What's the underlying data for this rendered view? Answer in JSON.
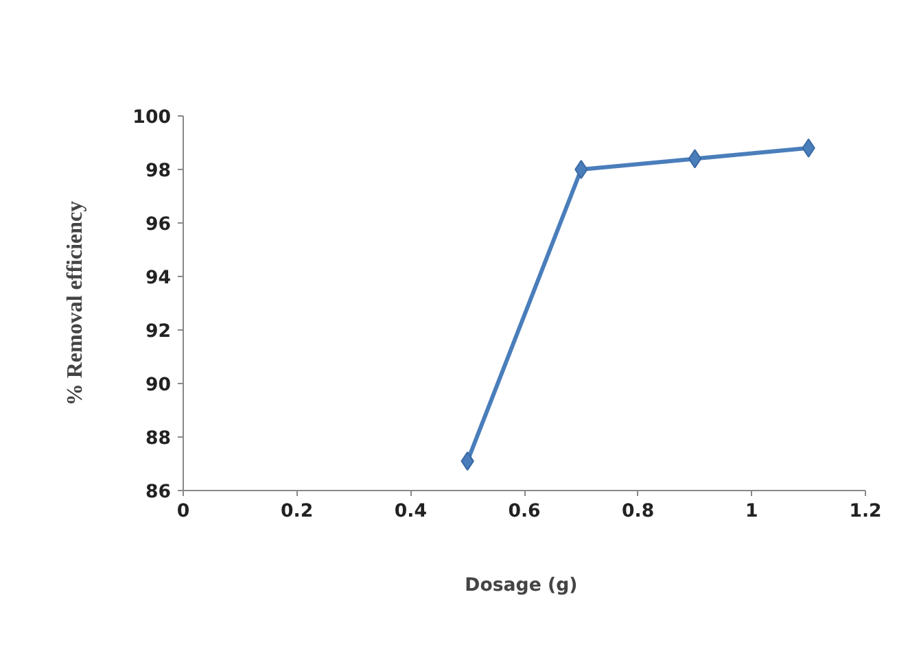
{
  "chart_data": {
    "type": "line",
    "xlabel": "Dosage  (g)",
    "ylabel": "% Removal efficiency",
    "x": [
      0.5,
      0.7,
      0.9,
      1.1
    ],
    "series": [
      {
        "color": "#4a7ebb",
        "values": [
          87.1,
          98.0,
          98.4,
          98.8
        ]
      }
    ],
    "xlim": [
      0,
      1.2
    ],
    "xticks": [
      0,
      0.2,
      0.4,
      0.6,
      0.8,
      1,
      1.2
    ],
    "ylim": [
      86,
      100
    ],
    "yticks": [
      86,
      88,
      90,
      92,
      94,
      96,
      98,
      100
    ],
    "grid": false,
    "marker": "diamond",
    "line_style": "solid"
  }
}
